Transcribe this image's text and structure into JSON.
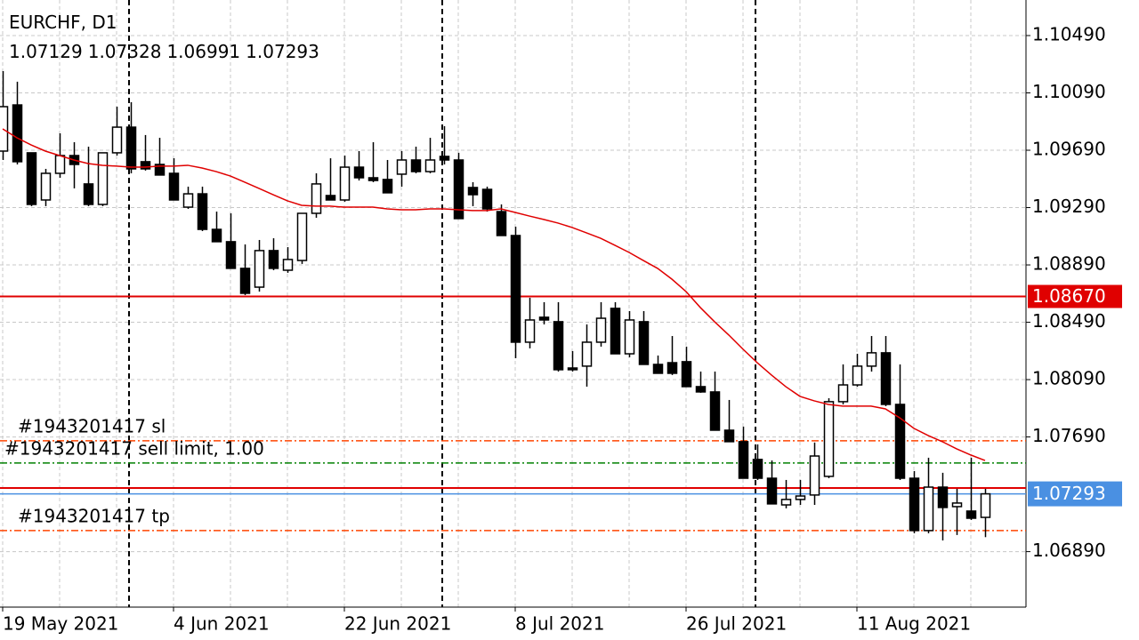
{
  "chart_data": {
    "type": "candlestick",
    "title": "EURCHF, D1",
    "categories": [
      "19 May 2021",
      null,
      null,
      null,
      null,
      null,
      null,
      null,
      null,
      null,
      null,
      null,
      "4 Jun 2021",
      null,
      null,
      null,
      null,
      null,
      null,
      null,
      null,
      null,
      null,
      null,
      "22 Jun 2021",
      null,
      null,
      null,
      null,
      null,
      null,
      null,
      null,
      null,
      null,
      null,
      "8 Jul 2021",
      null,
      null,
      null,
      null,
      null,
      null,
      null,
      null,
      null,
      null,
      null,
      "26 Jul 2021",
      null,
      null,
      null,
      null,
      null,
      null,
      null,
      null,
      null,
      null,
      null,
      "11 Aug 2021",
      null,
      null,
      null,
      null,
      null,
      null,
      null,
      null,
      null
    ],
    "open": [
      1.09684,
      1.10006,
      1.09672,
      1.09343,
      1.09529,
      1.09653,
      1.09455,
      1.09312,
      1.09672,
      1.09851,
      1.0961,
      1.09591,
      1.09529,
      1.09293,
      1.09386,
      1.09138,
      1.09052,
      1.08866,
      1.08735,
      1.0899,
      1.08853,
      1.08921,
      1.0925,
      1.09374,
      1.09343,
      1.09572,
      1.09498,
      1.09486,
      1.09523,
      1.09622,
      1.09541,
      1.09647,
      1.09622,
      1.0943,
      1.09417,
      1.09262,
      1.09095,
      1.08351,
      1.08525,
      1.08494,
      1.08171,
      1.08184,
      1.08351,
      1.08587,
      1.0827,
      1.08494,
      1.08196,
      1.08208,
      1.08215,
      1.08041,
      1.08004,
      1.07737,
      1.07657,
      1.07533,
      1.07402,
      1.07216,
      1.07254,
      1.07285,
      1.07415,
      1.07936,
      1.08053,
      1.08184,
      1.08277,
      1.07917,
      1.07402,
      1.07037,
      1.0734,
      1.07204,
      1.07173,
      1.07129
    ],
    "high": [
      1.10242,
      1.10168,
      1.09672,
      1.0956,
      1.09808,
      1.09746,
      1.09715,
      1.09672,
      1.09994,
      1.10025,
      1.09796,
      1.09777,
      1.09634,
      1.09436,
      1.09436,
      1.09262,
      1.0925,
      1.09033,
      1.09064,
      1.09076,
      1.09014,
      1.0925,
      1.09529,
      1.09634,
      1.09653,
      1.09684,
      1.09746,
      1.09622,
      1.09684,
      1.09715,
      1.09777,
      1.09858,
      1.09672,
      1.09467,
      1.09436,
      1.09312,
      1.09157,
      1.08661,
      1.0863,
      1.0863,
      1.08289,
      1.08475,
      1.0863,
      1.0863,
      1.08568,
      1.08568,
      1.08258,
      1.08394,
      1.0832,
      1.08146,
      1.08146,
      1.07948,
      1.07762,
      1.07638,
      1.07526,
      1.0739,
      1.0739,
      1.07651,
      1.0796,
      1.08196,
      1.0827,
      1.08394,
      1.08394,
      1.08196,
      1.07452,
      1.07545,
      1.0744,
      1.07328,
      1.07545,
      1.07328
    ],
    "low": [
      1.09622,
      1.09591,
      1.093,
      1.093,
      1.09498,
      1.09424,
      1.093,
      1.093,
      1.09653,
      1.09529,
      1.09548,
      1.09517,
      1.09343,
      1.09281,
      1.09126,
      1.09052,
      1.08866,
      1.0868,
      1.08704,
      1.08853,
      1.08835,
      1.08897,
      1.09219,
      1.09343,
      1.09331,
      1.09479,
      1.09467,
      1.09393,
      1.09436,
      1.09529,
      1.09529,
      1.09591,
      1.09213,
      1.093,
      1.09262,
      1.09095,
      1.08239,
      1.08308,
      1.08475,
      1.08146,
      1.08146,
      1.08041,
      1.0832,
      1.0827,
      1.08246,
      1.08196,
      1.08134,
      1.08122,
      1.08041,
      1.07998,
      1.07737,
      1.07657,
      1.07402,
      1.0739,
      1.07223,
      1.07192,
      1.07216,
      1.07216,
      1.07402,
      1.07917,
      1.08041,
      1.08146,
      1.07905,
      1.0739,
      1.07018,
      1.07018,
      1.06968,
      1.07006,
      1.07111,
      1.06991
    ],
    "close": [
      1.09994,
      1.0961,
      1.09312,
      1.09529,
      1.09653,
      1.09591,
      1.09312,
      1.09672,
      1.09851,
      1.0956,
      1.0956,
      1.09517,
      1.09343,
      1.09386,
      1.09138,
      1.09052,
      1.08866,
      1.08692,
      1.0899,
      1.08866,
      1.08928,
      1.0925,
      1.09455,
      1.09343,
      1.09572,
      1.09498,
      1.09479,
      1.09393,
      1.09622,
      1.09541,
      1.09622,
      1.09622,
      1.09213,
      1.0938,
      1.09281,
      1.09095,
      1.08351,
      1.08506,
      1.08506,
      1.08159,
      1.08159,
      1.08351,
      1.08518,
      1.0827,
      1.08506,
      1.08196,
      1.08134,
      1.08134,
      1.08041,
      1.08004,
      1.07737,
      1.07657,
      1.07402,
      1.07402,
      1.07223,
      1.07254,
      1.07278,
      1.07557,
      1.07936,
      1.08053,
      1.08184,
      1.08277,
      1.07917,
      1.07402,
      1.07037,
      1.0734,
      1.07198,
      1.07229,
      1.07123,
      1.07293
    ],
    "bull_color": "#ffffff",
    "bear_color": "#000000",
    "ma": {
      "color": "#e00000",
      "values": [
        1.09839,
        1.09777,
        1.09727,
        1.09684,
        1.09653,
        1.09622,
        1.09597,
        1.09585,
        1.09579,
        1.09572,
        1.09572,
        1.09579,
        1.09579,
        1.09585,
        1.09566,
        1.09541,
        1.0951,
        1.09467,
        1.09424,
        1.0938,
        1.09337,
        1.09306,
        1.093,
        1.093,
        1.09293,
        1.09293,
        1.09293,
        1.09281,
        1.09275,
        1.09275,
        1.09281,
        1.09281,
        1.09275,
        1.09269,
        1.09269,
        1.09281,
        1.09256,
        1.09231,
        1.09207,
        1.09182,
        1.09151,
        1.09114,
        1.09076,
        1.09027,
        1.08977,
        1.08921,
        1.08866,
        1.08791,
        1.08704,
        1.08593,
        1.08494,
        1.08401,
        1.08302,
        1.08208,
        1.08122,
        1.08041,
        1.07973,
        1.07942,
        1.07917,
        1.07905,
        1.07905,
        1.07905,
        1.07886,
        1.07824,
        1.0775,
        1.077,
        1.07657,
        1.07607,
        1.07564,
        1.07526
      ]
    },
    "ylim": [
      1.06503,
      1.10738
    ],
    "yticks": [
      {
        "value": 1.1049,
        "label": "1.10490"
      },
      {
        "value": 1.1009,
        "label": "1.10090"
      },
      {
        "value": 1.0969,
        "label": "1.09690"
      },
      {
        "value": 1.0929,
        "label": "1.09290"
      },
      {
        "value": 1.0889,
        "label": "1.08890"
      },
      {
        "value": 1.0849,
        "label": "1.08490"
      },
      {
        "value": 1.0809,
        "label": "1.08090"
      },
      {
        "value": 1.0769,
        "label": "1.07690"
      },
      {
        "value": 1.0689,
        "label": "1.06890"
      }
    ],
    "grid": true,
    "period_separators": [
      9,
      31,
      53
    ],
    "levels": [
      {
        "value": 1.0867,
        "label": "1.08670",
        "color": "#e00000",
        "style": "solid"
      },
      {
        "value": 1.07334,
        "color": "#e00000",
        "style": "solid"
      },
      {
        "value": 1.07663,
        "color": "#ff4500",
        "style": "dashdot",
        "text": "#1943201417 sl"
      },
      {
        "value": 1.07508,
        "color": "#008000",
        "style": "dashdot",
        "text": "#1943201417 sell limit, 1.00"
      },
      {
        "value": 1.07037,
        "color": "#ff4500",
        "style": "dashdot",
        "text": "#1943201417 tp"
      }
    ],
    "bid": {
      "value": 1.07293,
      "label": "1.07293",
      "color": "#4a90e2"
    }
  }
}
